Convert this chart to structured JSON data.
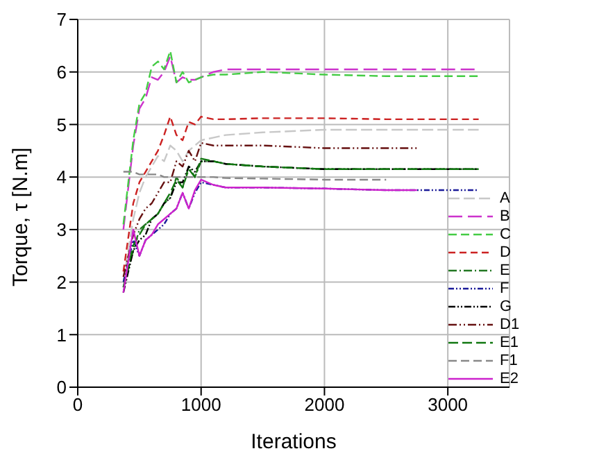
{
  "chart_data": {
    "type": "line",
    "xlabel": "Iterations",
    "ylabel": "Torque, τ [N.m]",
    "xlim": [
      0,
      3500
    ],
    "xticks": [
      0,
      1000,
      2000,
      3000
    ],
    "ylim": [
      0,
      7
    ],
    "yticks": [
      0,
      1,
      2,
      3,
      4,
      5,
      6,
      7
    ],
    "grid": true,
    "legend": "bottom right",
    "marker": "none",
    "x": [
      370,
      450,
      500,
      550,
      600,
      650,
      700,
      750,
      800,
      850,
      900,
      950,
      1000,
      1100,
      1200,
      1500,
      2000,
      2500,
      2750,
      3000,
      3250
    ],
    "series": [
      {
        "name": "A",
        "color": "#c8c8c8",
        "line_style": "dashed",
        "values": [
          2.0,
          3.2,
          3.7,
          4.0,
          4.2,
          4.4,
          4.3,
          4.6,
          4.5,
          4.3,
          4.5,
          4.6,
          4.7,
          4.75,
          4.8,
          4.85,
          4.9,
          4.9,
          4.9,
          4.9,
          4.9
        ]
      },
      {
        "name": "B",
        "color": "#cc33cc",
        "line_style": "dashed",
        "values": [
          3.0,
          4.6,
          5.3,
          5.5,
          5.9,
          5.85,
          6.0,
          6.3,
          5.8,
          5.9,
          5.85,
          5.85,
          5.9,
          6.0,
          6.05,
          6.05,
          6.05,
          6.05,
          6.05,
          6.05,
          6.05
        ]
      },
      {
        "name": "C",
        "color": "#44cc44",
        "line_style": "dashed",
        "values": [
          3.1,
          4.7,
          5.4,
          5.6,
          6.1,
          6.2,
          6.05,
          6.4,
          5.8,
          6.0,
          5.8,
          5.85,
          5.9,
          5.95,
          5.95,
          6.0,
          5.95,
          5.92,
          5.92,
          5.92,
          5.92
        ]
      },
      {
        "name": "D",
        "color": "#cc2222",
        "line_style": "dashed",
        "values": [
          2.2,
          3.5,
          3.9,
          4.1,
          4.3,
          4.5,
          4.8,
          5.15,
          4.8,
          4.7,
          5.05,
          5.0,
          5.15,
          5.1,
          5.1,
          5.12,
          5.12,
          5.1,
          5.1,
          5.1,
          5.1
        ]
      },
      {
        "name": "E",
        "color": "#227722",
        "line_style": "dashed",
        "values": [
          1.9,
          2.6,
          3.0,
          3.1,
          3.2,
          3.3,
          3.5,
          3.6,
          4.0,
          3.8,
          4.2,
          4.0,
          4.3,
          4.3,
          4.25,
          4.2,
          4.15,
          4.15,
          4.15,
          4.15,
          4.15
        ]
      },
      {
        "name": "F",
        "color": "#1a1a99",
        "line_style": "dashed",
        "values": [
          2.0,
          2.8,
          2.5,
          2.8,
          2.9,
          3.0,
          3.1,
          3.3,
          3.4,
          3.7,
          3.4,
          3.7,
          3.9,
          3.85,
          3.8,
          3.8,
          3.78,
          3.75,
          3.75,
          3.75,
          3.75
        ]
      },
      {
        "name": "G",
        "color": "#000000",
        "line_style": "dashed",
        "values": [
          1.8,
          2.6,
          2.8,
          2.9,
          3.2,
          3.3,
          3.5,
          3.6,
          3.9,
          3.9,
          4.2,
          4.1,
          4.3,
          4.3,
          4.25,
          4.2,
          4.15,
          4.15,
          4.15,
          4.15,
          4.15
        ]
      },
      {
        "name": "D1",
        "color": "#661111",
        "line_style": "dashed",
        "values": [
          2.1,
          2.9,
          3.2,
          3.4,
          3.5,
          3.7,
          3.9,
          3.9,
          4.3,
          4.2,
          4.5,
          4.3,
          4.65,
          4.6,
          4.6,
          4.6,
          4.55,
          4.55,
          4.55,
          null,
          null
        ]
      },
      {
        "name": "E1",
        "color": "#117711",
        "line_style": "dashed",
        "values": [
          1.9,
          2.7,
          2.9,
          3.1,
          3.2,
          3.3,
          3.5,
          3.7,
          3.95,
          3.8,
          4.15,
          4.0,
          4.35,
          4.3,
          4.25,
          4.2,
          4.15,
          4.15,
          4.15,
          4.15,
          4.15
        ]
      },
      {
        "name": "F1",
        "color": "#888888",
        "line_style": "dashed",
        "values": [
          4.1,
          4.1,
          4.05,
          4.05,
          4.05,
          4.05,
          4.0,
          4.0,
          4.0,
          4.0,
          4.0,
          4.0,
          4.0,
          4.0,
          3.98,
          3.97,
          3.95,
          3.95,
          null,
          null,
          null
        ]
      },
      {
        "name": "E2",
        "color": "#cc22cc",
        "line_style": "solid",
        "values": [
          1.8,
          3.0,
          2.5,
          2.8,
          2.9,
          3.1,
          3.2,
          3.3,
          3.4,
          3.7,
          3.4,
          3.75,
          3.95,
          3.85,
          3.8,
          3.8,
          3.78,
          3.75,
          3.75,
          null,
          null
        ]
      }
    ]
  }
}
